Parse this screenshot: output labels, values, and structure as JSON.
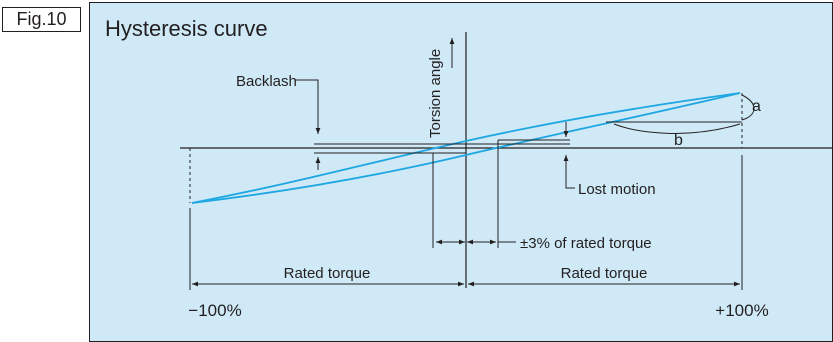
{
  "figure": {
    "label": "Fig.10",
    "title": "Hysteresis curve"
  },
  "labels": {
    "y_axis": "Torsion angle",
    "backlash": "Backlash",
    "lost_motion": "Lost motion",
    "threshold": "±3% of rated torque",
    "rated_torque_left": "Rated torque",
    "rated_torque_right": "Rated torque",
    "minus_100": "−100%",
    "plus_100": "+100%",
    "a": "a",
    "b": "b"
  },
  "colors": {
    "panel_background": "#cfe9f7",
    "curve": "#1ea7e1",
    "line": "#231f20"
  }
}
